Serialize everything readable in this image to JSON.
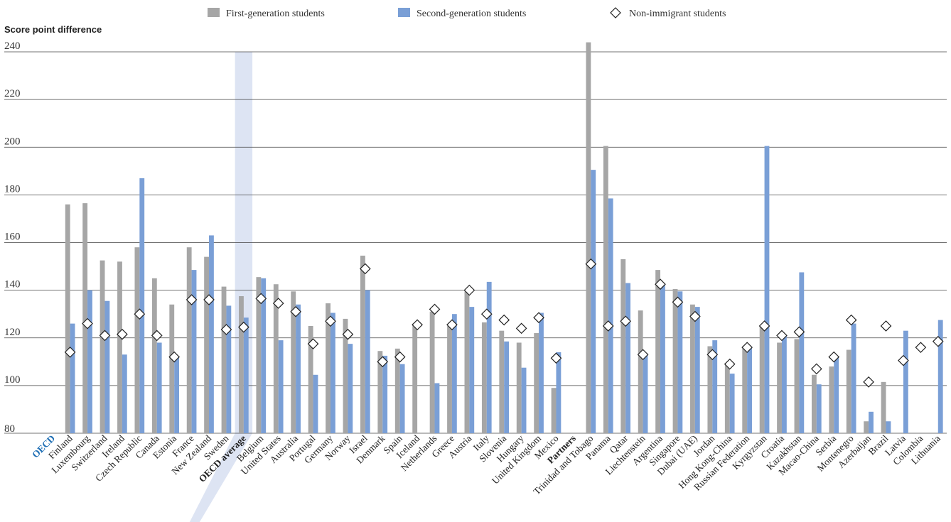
{
  "legend": [
    {
      "label": "First-generation students",
      "key": "first",
      "color": "#a6a6a6"
    },
    {
      "label": "Second-generation students",
      "key": "second",
      "color": "#7a9fd6"
    },
    {
      "label": "Non-immigrant students",
      "key": "non"
    }
  ],
  "chart_data": {
    "type": "bar",
    "title": "",
    "ylabel": "Score point difference",
    "ylim": [
      80,
      240
    ],
    "yticks": [
      80,
      100,
      120,
      140,
      160,
      180,
      200,
      220,
      240
    ],
    "grid": true,
    "legend_position": "top",
    "colors": {
      "first": "#a6a6a6",
      "second": "#7a9fd6",
      "highlight": "#dde4f3",
      "oecd_label": "#1f6fb5"
    },
    "categories": [
      {
        "label": "OECD",
        "role": "group"
      },
      {
        "label": "Finland",
        "first": 176,
        "second": 126,
        "non": 114
      },
      {
        "label": "Luxembourg",
        "first": 176.5,
        "second": 140,
        "non": 126
      },
      {
        "label": "Switzerland",
        "first": 152.5,
        "second": 135.5,
        "non": 121
      },
      {
        "label": "Ireland",
        "first": 152,
        "second": 113,
        "non": 121.5
      },
      {
        "label": "Czech Republic",
        "first": 158,
        "second": 187,
        "non": 130
      },
      {
        "label": "Canada",
        "first": 145,
        "second": 118,
        "non": 121
      },
      {
        "label": "Estonia",
        "first": 134,
        "second": 112,
        "non": 112
      },
      {
        "label": "France",
        "first": 158,
        "second": 148.5,
        "non": 136
      },
      {
        "label": "New Zealand",
        "first": 154,
        "second": 163,
        "non": 136
      },
      {
        "label": "Sweden",
        "first": 141.5,
        "second": 133.5,
        "non": 123.5
      },
      {
        "label": "OECD average",
        "role": "average",
        "first": 137.5,
        "second": 128.5,
        "non": 124.5
      },
      {
        "label": "Belgium",
        "first": 145.5,
        "second": 145,
        "non": 136.5
      },
      {
        "label": "United States",
        "first": 142.5,
        "second": 119,
        "non": 134.5
      },
      {
        "label": "Australia",
        "first": 139.5,
        "second": 134,
        "non": 131
      },
      {
        "label": "Portugal",
        "first": 125,
        "second": 104.5,
        "non": 117.5
      },
      {
        "label": "Germany",
        "first": 134.5,
        "second": 130.5,
        "non": 127
      },
      {
        "label": "Norway",
        "first": 128,
        "second": 117.5,
        "non": 121.5
      },
      {
        "label": "Israel",
        "first": 154.5,
        "second": 140,
        "non": 149
      },
      {
        "label": "Denmark",
        "first": 114.5,
        "second": 112.5,
        "non": 110
      },
      {
        "label": "Spain",
        "first": 115.5,
        "second": 109,
        "non": 112
      },
      {
        "label": "Iceland",
        "first": 126,
        "second": null,
        "non": 125.5
      },
      {
        "label": "Netherlands",
        "first": 131,
        "second": 101,
        "non": 132
      },
      {
        "label": "Greece",
        "first": 125,
        "second": 130,
        "non": 125.5
      },
      {
        "label": "Austria",
        "first": 139.5,
        "second": 133,
        "non": 140
      },
      {
        "label": "Italy",
        "first": 126.5,
        "second": 143.5,
        "non": 130
      },
      {
        "label": "Slovenia",
        "first": 123,
        "second": 118.5,
        "non": 127.5
      },
      {
        "label": "Hungary",
        "first": 118,
        "second": 107.5,
        "non": 124
      },
      {
        "label": "United Kingdom",
        "first": 122,
        "second": 130.5,
        "non": 128.5
      },
      {
        "label": "Mexico",
        "first": 99,
        "second": 114,
        "non": 111.5
      },
      {
        "label": "Partners",
        "role": "group"
      },
      {
        "label": "Trinidad and Tobago",
        "first": 244,
        "second": 190.5,
        "non": 151
      },
      {
        "label": "Panama",
        "first": 200.5,
        "second": 178.5,
        "non": 125
      },
      {
        "label": "Qatar",
        "first": 153,
        "second": 143,
        "non": 127
      },
      {
        "label": "Liechtenstein",
        "first": 131.5,
        "second": 113.5,
        "non": 113
      },
      {
        "label": "Argentina",
        "first": 148.5,
        "second": 142.5,
        "non": 142.5
      },
      {
        "label": "Singapore",
        "first": 140.5,
        "second": 139.5,
        "non": 135
      },
      {
        "label": "Dubai (UAE)",
        "first": 134,
        "second": 133,
        "non": 129
      },
      {
        "label": "Jordan",
        "first": 116.5,
        "second": 119,
        "non": 113
      },
      {
        "label": "Hong Kong-China",
        "first": 109,
        "second": 105,
        "non": 109
      },
      {
        "label": "Russian Federation",
        "first": 116.5,
        "second": 116,
        "non": 116
      },
      {
        "label": "Kyrgyzstan",
        "first": 125,
        "second": 200.5,
        "non": 125
      },
      {
        "label": "Croatia",
        "first": 118,
        "second": 121,
        "non": 121
      },
      {
        "label": "Kazakhstan",
        "first": 119.5,
        "second": 147.5,
        "non": 122.5
      },
      {
        "label": "Macao-China",
        "first": 104.5,
        "second": 100.5,
        "non": 107
      },
      {
        "label": "Serbia",
        "first": 108,
        "second": 112,
        "non": 112
      },
      {
        "label": "Montenegro",
        "first": 115,
        "second": 126,
        "non": 127.5
      },
      {
        "label": "Azerbaijan",
        "first": 85,
        "second": 89,
        "non": 101.5
      },
      {
        "label": "Brazil",
        "first": 101.5,
        "second": 85,
        "non": 125
      },
      {
        "label": "Latvia",
        "first": null,
        "second": 123,
        "non": 110.5
      },
      {
        "label": "Colombia",
        "first": null,
        "second": null,
        "non": 116
      },
      {
        "label": "Lithuania",
        "first": null,
        "second": 127.5,
        "non": 118.5
      }
    ]
  }
}
